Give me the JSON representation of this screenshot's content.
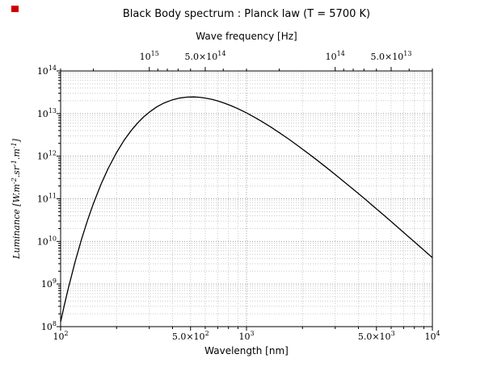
{
  "figure": {
    "background": "#ffffff",
    "marker_color": "#cc0000"
  },
  "chart_data": {
    "type": "line",
    "title": "Black Body spectrum : Planck law (T = 5700 K)",
    "xlabel": "Wavelength [nm]",
    "x2label": "Wave frequency [Hz]",
    "ylabel_parts": [
      {
        "t": "Luminance ["
      },
      {
        "t": "W.m"
      },
      {
        "s": "-2"
      },
      {
        "t": ".sr"
      },
      {
        "s": "-1"
      },
      {
        "t": ".m"
      },
      {
        "s": "-1"
      },
      {
        "t": "]"
      }
    ],
    "xscale": "log",
    "yscale": "log",
    "xlim": [
      100,
      10000
    ],
    "ylim": [
      100000000.0,
      100000000000000.0
    ],
    "grid": true,
    "legend": "none",
    "temperature_K": 5700,
    "c_nm_hz": 3e+17,
    "colors": {
      "curve": "#000000",
      "frame": "#000000",
      "grid_minor": "#c9c9c9",
      "grid_major": "#9c9c9c"
    },
    "x_ticks": [
      {
        "value": 100,
        "main": "10",
        "sup": "2"
      },
      {
        "value": 500,
        "main": "5.0×10",
        "sup": "2"
      },
      {
        "value": 1000,
        "main": "10",
        "sup": "3"
      },
      {
        "value": 5000,
        "main": "5.0×10",
        "sup": "3"
      },
      {
        "value": 10000,
        "main": "10",
        "sup": "4"
      }
    ],
    "y_ticks": [
      {
        "value": 100000000.0,
        "main": "10",
        "sup": "8"
      },
      {
        "value": 1000000000.0,
        "main": "10",
        "sup": "9"
      },
      {
        "value": 10000000000.0,
        "main": "10",
        "sup": "10"
      },
      {
        "value": 100000000000.0,
        "main": "10",
        "sup": "11"
      },
      {
        "value": 1000000000000.0,
        "main": "10",
        "sup": "12"
      },
      {
        "value": 10000000000000.0,
        "main": "10",
        "sup": "13"
      },
      {
        "value": 100000000000000.0,
        "main": "10",
        "sup": "14"
      }
    ],
    "x2_ticks": [
      {
        "freq": 1000000000000000.0,
        "main": "10",
        "sup": "15"
      },
      {
        "freq": 500000000000000.0,
        "main": "5.0×10",
        "sup": "14"
      },
      {
        "freq": 100000000000000.0,
        "main": "10",
        "sup": "14"
      },
      {
        "freq": 50000000000000.0,
        "main": "5.0×10",
        "sup": "13"
      }
    ],
    "points": [
      [
        100,
        129000000.0
      ],
      [
        105,
        336000000.0
      ],
      [
        110,
        794000000.0
      ],
      [
        120,
        3480000000.0
      ],
      [
        130,
        11800000000.0
      ],
      [
        140,
        32500000000.0
      ],
      [
        150,
        76700000000.0
      ],
      [
        165,
        220000000000.0
      ],
      [
        180,
        510000000000.0
      ],
      [
        200,
        1220000000000.0
      ],
      [
        220,
        2400000000000.0
      ],
      [
        240,
        4030000000000.0
      ],
      [
        260,
        6070000000000.0
      ],
      [
        280,
        8390000000000.0
      ],
      [
        300,
        10800000000000.0
      ],
      [
        330,
        14500000000000.0
      ],
      [
        360,
        17700000000000.0
      ],
      [
        400,
        21100000000000.0
      ],
      [
        440,
        23300000000000.0
      ],
      [
        480,
        24400000000000.0
      ],
      [
        520,
        24600000000000.0
      ],
      [
        560,
        24100000000000.0
      ],
      [
        600,
        23100000000000.0
      ],
      [
        650,
        21600000000000.0
      ],
      [
        700,
        19800000000000.0
      ],
      [
        760,
        17600000000000.0
      ],
      [
        830,
        15200000000000.0
      ],
      [
        900,
        13000000000000.0
      ],
      [
        1000,
        10400000000000.0
      ],
      [
        1100,
        8290000000000.0
      ],
      [
        1200,
        6660000000000.0
      ],
      [
        1350,
        4840000000000.0
      ],
      [
        1500,
        3580000000000.0
      ],
      [
        1700,
        2460000000000.0
      ],
      [
        1900,
        1730000000000.0
      ],
      [
        2100,
        1250000000000.0
      ],
      [
        2400,
        804000000000.0
      ],
      [
        2700,
        537000000000.0
      ],
      [
        3000,
        372000000000.0
      ],
      [
        3400,
        238000000000.0
      ],
      [
        3800,
        160000000000.0
      ],
      [
        4300,
        102000000000.0
      ],
      [
        4800,
        67600000000.0
      ],
      [
        5400,
        43600000000.0
      ],
      [
        6000,
        29300000000.0
      ],
      [
        6800,
        18200000000.0
      ],
      [
        7600,
        11900000000.0
      ],
      [
        8500,
        7770000000.0
      ],
      [
        9200,
        5730000000.0
      ],
      [
        10000,
        4150000000.0
      ]
    ]
  }
}
